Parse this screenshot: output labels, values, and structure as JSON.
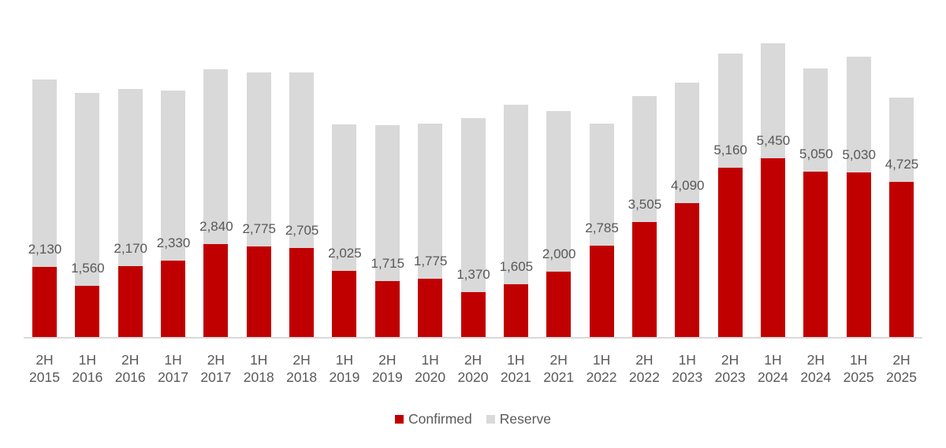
{
  "chart_data": {
    "type": "bar",
    "stacked": true,
    "title": "",
    "xlabel": "",
    "ylabel": "",
    "categories": [
      "2H 2015",
      "1H 2016",
      "2H 2016",
      "1H 2017",
      "2H 2017",
      "1H 2018",
      "2H 2018",
      "1H 2019",
      "2H 2019",
      "1H 2020",
      "2H 2020",
      "1H 2021",
      "2H 2021",
      "1H 2022",
      "2H 2022",
      "1H 2023",
      "2H 2023",
      "1H 2024",
      "2H 2024",
      "1H 2025",
      "2H 2025"
    ],
    "category_lines": [
      [
        "2H",
        "2015"
      ],
      [
        "1H",
        "2016"
      ],
      [
        "2H",
        "2016"
      ],
      [
        "1H",
        "2017"
      ],
      [
        "2H",
        "2017"
      ],
      [
        "1H",
        "2018"
      ],
      [
        "2H",
        "2018"
      ],
      [
        "1H",
        "2019"
      ],
      [
        "2H",
        "2019"
      ],
      [
        "1H",
        "2020"
      ],
      [
        "2H",
        "2020"
      ],
      [
        "1H",
        "2021"
      ],
      [
        "2H",
        "2021"
      ],
      [
        "1H",
        "2022"
      ],
      [
        "2H",
        "2022"
      ],
      [
        "1H",
        "2023"
      ],
      [
        "2H",
        "2023"
      ],
      [
        "1H",
        "2024"
      ],
      [
        "2H",
        "2024"
      ],
      [
        "1H",
        "2025"
      ],
      [
        "2H",
        "2025"
      ]
    ],
    "series": [
      {
        "name": "Confirmed",
        "color": "#c00000",
        "values": [
          2130,
          1560,
          2170,
          2330,
          2840,
          2775,
          2705,
          2025,
          1715,
          1775,
          1370,
          1605,
          2000,
          2785,
          3505,
          4090,
          5160,
          5450,
          5050,
          5030,
          4725
        ],
        "labels": [
          "2,130",
          "1,560",
          "2,170",
          "2,330",
          "2,840",
          "2,775",
          "2,705",
          "2,025",
          "1,715",
          "1,775",
          "1,370",
          "1,605",
          "2,000",
          "2,785",
          "3,505",
          "4,090",
          "5,160",
          "5,450",
          "5,050",
          "5,030",
          "4,725"
        ]
      },
      {
        "name": "Reserve",
        "color": "#d9d9d9",
        "values": [
          5730,
          5890,
          5400,
          5190,
          5330,
          5305,
          5375,
          4465,
          4755,
          4735,
          5310,
          5485,
          4900,
          3725,
          3855,
          3670,
          3490,
          3520,
          3150,
          3530,
          2585
        ]
      }
    ],
    "ylim": [
      0,
      10300
    ],
    "grid": false,
    "y_axis_visible": false,
    "legend_position": "bottom"
  },
  "legend": {
    "items": [
      {
        "label": "Confirmed",
        "color": "#c00000"
      },
      {
        "label": "Reserve",
        "color": "#d9d9d9"
      }
    ]
  }
}
